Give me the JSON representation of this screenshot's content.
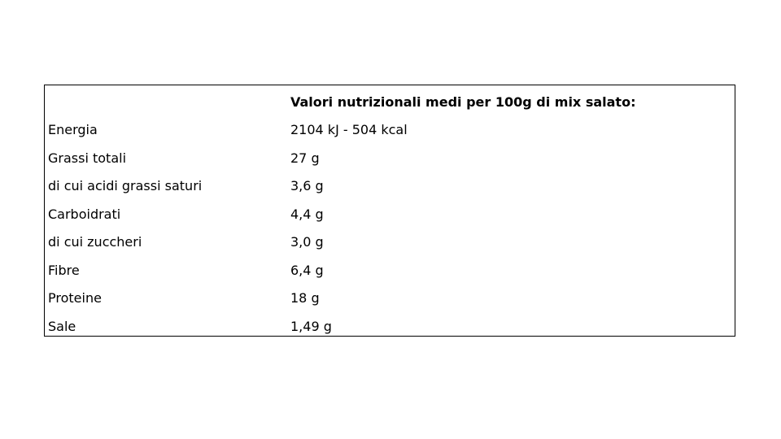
{
  "table": {
    "header": [
      "",
      "Valori nutrizionali medi per 100g di mix salato:"
    ],
    "rows": [
      [
        "Energia",
        "2104 kJ - 504 kcal"
      ],
      [
        "Grassi totali",
        "27 g"
      ],
      [
        "di cui acidi grassi saturi",
        "3,6 g"
      ],
      [
        "Carboidrati",
        "4,4 g"
      ],
      [
        "di cui zuccheri",
        "3,0 g"
      ],
      [
        "Fibre",
        "6,4 g"
      ],
      [
        "Proteine",
        "18 g"
      ],
      [
        "Sale",
        "1,49 g"
      ]
    ]
  }
}
